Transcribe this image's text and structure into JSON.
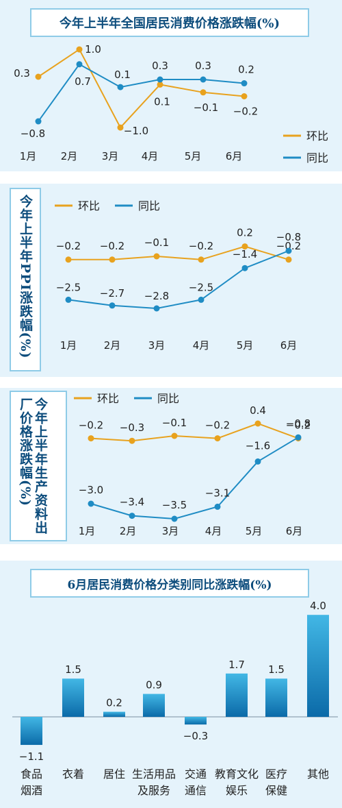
{
  "colors": {
    "mom": "#e8a21e",
    "yoy": "#1f8cc4",
    "bar_top": "#42b7e5",
    "bar_bottom": "#0b6aa8",
    "title": "#0c4c7c"
  },
  "chart_data": [
    {
      "type": "line",
      "title": "今年上半年全国居民消费价格涨跌幅(%)",
      "categories": [
        "1月",
        "2月",
        "3月",
        "4月",
        "5月",
        "6月"
      ],
      "series": [
        {
          "name": "环比",
          "values": [
            0.3,
            1.0,
            -1.0,
            0.1,
            -0.1,
            -0.2
          ]
        },
        {
          "name": "同比",
          "values": [
            -0.8,
            0.7,
            0.1,
            0.3,
            0.3,
            0.2
          ]
        }
      ],
      "legend": "right",
      "value_labels": {
        "环比": [
          "0.3",
          "1.0",
          "−1.0",
          "0.1",
          "−0.1",
          "−0.2"
        ],
        "同比": [
          "−0.8",
          "0.7",
          "0.1",
          "0.3",
          "0.3",
          "0.2"
        ]
      }
    },
    {
      "type": "line",
      "title": "今年上半年PPI涨跌幅(%)",
      "categories": [
        "1月",
        "2月",
        "3月",
        "4月",
        "5月",
        "6月"
      ],
      "series": [
        {
          "name": "环比",
          "values": [
            -0.2,
            -0.2,
            -0.1,
            -0.2,
            0.2,
            -0.2
          ]
        },
        {
          "name": "同比",
          "values": [
            -2.5,
            -2.7,
            -2.8,
            -2.5,
            -1.4,
            -0.8
          ]
        }
      ],
      "legend": "top",
      "value_labels": {
        "环比": [
          "−0.2",
          "−0.2",
          "−0.1",
          "−0.2",
          "0.2",
          "−0.2"
        ],
        "同比": [
          "−2.5",
          "−2.7",
          "−2.8",
          "−2.5",
          "−1.4",
          "−0.8"
        ]
      }
    },
    {
      "type": "line",
      "title": "今年上半年生产资料出厂价格涨跌幅(%)",
      "categories": [
        "1月",
        "2月",
        "3月",
        "4月",
        "5月",
        "6月"
      ],
      "series": [
        {
          "name": "环比",
          "values": [
            -0.2,
            -0.3,
            -0.1,
            -0.2,
            0.4,
            -0.2
          ]
        },
        {
          "name": "同比",
          "values": [
            -3.0,
            -3.4,
            -3.5,
            -3.1,
            -1.6,
            -0.8
          ]
        }
      ],
      "legend": "top",
      "value_labels": {
        "环比": [
          "−0.2",
          "−0.3",
          "−0.1",
          "−0.2",
          "0.4",
          "−0.2"
        ],
        "同比": [
          "−3.0",
          "−3.4",
          "−3.5",
          "−3.1",
          "−1.6",
          "−0.8"
        ]
      }
    },
    {
      "type": "bar",
      "title": "6月居民消费价格分类别同比涨跌幅(%)",
      "categories": [
        [
          "食品",
          "烟酒"
        ],
        [
          "衣着"
        ],
        [
          "居住"
        ],
        [
          "生活用品",
          "及服务"
        ],
        [
          "交通",
          "通信"
        ],
        [
          "教育文化",
          "娱乐"
        ],
        [
          "医疗",
          "保健"
        ],
        [
          "其他"
        ]
      ],
      "values": [
        -1.1,
        1.5,
        0.2,
        0.9,
        -0.3,
        1.7,
        1.5,
        4.0
      ],
      "value_labels": [
        "−1.1",
        "1.5",
        "0.2",
        "0.9",
        "−0.3",
        "1.7",
        "1.5",
        "4.0"
      ]
    }
  ]
}
